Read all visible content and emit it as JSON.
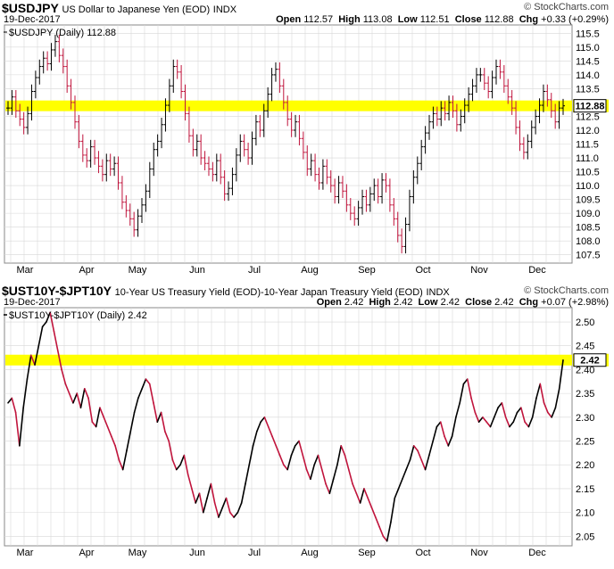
{
  "panel1": {
    "symbol": "$USDJPY",
    "description": "US Dollar to Japanese Yen (EOD)",
    "exchange": "INDX",
    "date": "19-Dec-2017",
    "watermark": "© StockCharts.com",
    "ohlc": {
      "open_label": "Open",
      "open": "112.57",
      "high_label": "High",
      "high": "113.08",
      "low_label": "Low",
      "low": "112.51",
      "close_label": "Close",
      "close": "112.88",
      "chg_label": "Chg",
      "chg": "+0.33 (+0.29%)"
    },
    "legend": "$USDJPY (Daily) 112.88",
    "last_value": "112.88"
  },
  "panel2": {
    "symbol": "$UST10Y-$JPT10Y",
    "description": "10-Year US Treasury Yield (EOD)-10-Year Japan Treasury Yield (EOD)",
    "exchange": "INDX",
    "date": "19-Dec-2017",
    "watermark": "© StockCharts.com",
    "ohlc": {
      "open_label": "Open",
      "open": "2.42",
      "high_label": "High",
      "high": "2.42",
      "low_label": "Low",
      "low": "2.42",
      "close_label": "Close",
      "close": "2.42",
      "chg_label": "Chg",
      "chg": "+0.07 (+2.98%)"
    },
    "legend": "$UST10Y-$JPT10Y (Daily) 2.42",
    "last_value": "2.42"
  },
  "colors": {
    "up": "#000000",
    "down": "#c0143c",
    "highlight": "#ffff00",
    "grid": "#d8d8d8"
  },
  "chart_data": [
    {
      "type": "ohlc",
      "title": "$USDJPY",
      "x_ticks": [
        "Mar",
        "Apr",
        "May",
        "Jun",
        "Jul",
        "Aug",
        "Sep",
        "Oct",
        "Nov",
        "Dec"
      ],
      "y_ticks": [
        107.5,
        108.0,
        108.5,
        109.0,
        109.5,
        110.0,
        110.5,
        111.0,
        111.5,
        112.0,
        112.5,
        113.0,
        113.5,
        114.0,
        114.5,
        115.0,
        115.5
      ],
      "ylim": [
        107.2,
        115.8
      ],
      "highlight_level": 112.88,
      "closes": [
        112.8,
        113.2,
        112.7,
        112.4,
        112.1,
        112.6,
        113.4,
        113.9,
        114.3,
        114.6,
        114.4,
        114.9,
        115.2,
        114.7,
        114.3,
        113.6,
        113.0,
        112.3,
        111.6,
        111.1,
        110.9,
        111.4,
        111.0,
        110.7,
        110.4,
        110.9,
        110.6,
        110.8,
        110.1,
        109.4,
        109.1,
        108.8,
        108.4,
        108.9,
        109.3,
        109.8,
        110.6,
        111.3,
        111.6,
        112.2,
        112.9,
        113.6,
        114.3,
        114.1,
        113.4,
        112.6,
        111.8,
        111.3,
        111.6,
        111.0,
        110.8,
        110.6,
        110.4,
        110.9,
        110.3,
        109.7,
        109.9,
        110.4,
        111.1,
        111.6,
        111.3,
        111.0,
        111.7,
        112.3,
        112.0,
        112.7,
        113.3,
        114.0,
        114.2,
        113.6,
        113.0,
        112.4,
        112.0,
        112.3,
        111.7,
        111.2,
        110.6,
        110.9,
        110.4,
        110.1,
        110.7,
        110.3,
        110.0,
        109.6,
        110.1,
        109.8,
        109.3,
        109.0,
        108.8,
        109.2,
        109.6,
        109.3,
        109.7,
        110.0,
        109.6,
        110.2,
        110.0,
        109.3,
        108.8,
        108.2,
        107.8,
        108.6,
        109.6,
        110.3,
        110.8,
        111.4,
        111.9,
        112.3,
        112.6,
        112.4,
        112.8,
        112.6,
        113.0,
        112.7,
        112.2,
        112.5,
        112.9,
        113.3,
        113.6,
        114.0,
        114.0,
        113.7,
        113.4,
        113.9,
        114.3,
        114.1,
        113.6,
        113.2,
        112.8,
        112.1,
        111.5,
        111.2,
        111.6,
        112.1,
        112.5,
        112.9,
        113.4,
        113.1,
        112.7,
        112.3,
        112.8,
        112.88
      ]
    },
    {
      "type": "line",
      "title": "$UST10Y-$JPT10Y",
      "x_ticks": [
        "Mar",
        "Apr",
        "May",
        "Jun",
        "Jul",
        "Aug",
        "Sep",
        "Oct",
        "Nov",
        "Dec"
      ],
      "y_ticks": [
        2.05,
        2.1,
        2.15,
        2.2,
        2.25,
        2.3,
        2.35,
        2.4,
        2.45,
        2.5
      ],
      "ylim": [
        2.03,
        2.53
      ],
      "highlight_level": 2.42,
      "values": [
        2.33,
        2.34,
        2.31,
        2.24,
        2.32,
        2.38,
        2.43,
        2.41,
        2.45,
        2.49,
        2.5,
        2.52,
        2.48,
        2.44,
        2.4,
        2.37,
        2.35,
        2.33,
        2.35,
        2.32,
        2.36,
        2.34,
        2.29,
        2.28,
        2.32,
        2.3,
        2.28,
        2.26,
        2.24,
        2.21,
        2.19,
        2.23,
        2.27,
        2.31,
        2.34,
        2.36,
        2.38,
        2.37,
        2.33,
        2.29,
        2.31,
        2.27,
        2.25,
        2.21,
        2.19,
        2.2,
        2.22,
        2.18,
        2.15,
        2.12,
        2.14,
        2.1,
        2.13,
        2.16,
        2.12,
        2.09,
        2.11,
        2.13,
        2.1,
        2.09,
        2.1,
        2.12,
        2.16,
        2.2,
        2.24,
        2.27,
        2.29,
        2.3,
        2.28,
        2.26,
        2.24,
        2.22,
        2.2,
        2.19,
        2.22,
        2.24,
        2.25,
        2.22,
        2.19,
        2.17,
        2.2,
        2.22,
        2.19,
        2.16,
        2.14,
        2.17,
        2.2,
        2.24,
        2.22,
        2.19,
        2.16,
        2.14,
        2.12,
        2.15,
        2.13,
        2.11,
        2.09,
        2.07,
        2.05,
        2.04,
        2.08,
        2.13,
        2.15,
        2.17,
        2.19,
        2.21,
        2.24,
        2.23,
        2.21,
        2.19,
        2.22,
        2.25,
        2.28,
        2.29,
        2.26,
        2.24,
        2.26,
        2.3,
        2.33,
        2.37,
        2.38,
        2.34,
        2.31,
        2.29,
        2.3,
        2.29,
        2.28,
        2.3,
        2.32,
        2.33,
        2.3,
        2.28,
        2.29,
        2.31,
        2.32,
        2.29,
        2.28,
        2.3,
        2.34,
        2.37,
        2.33,
        2.31,
        2.3,
        2.32,
        2.36,
        2.42
      ]
    }
  ]
}
